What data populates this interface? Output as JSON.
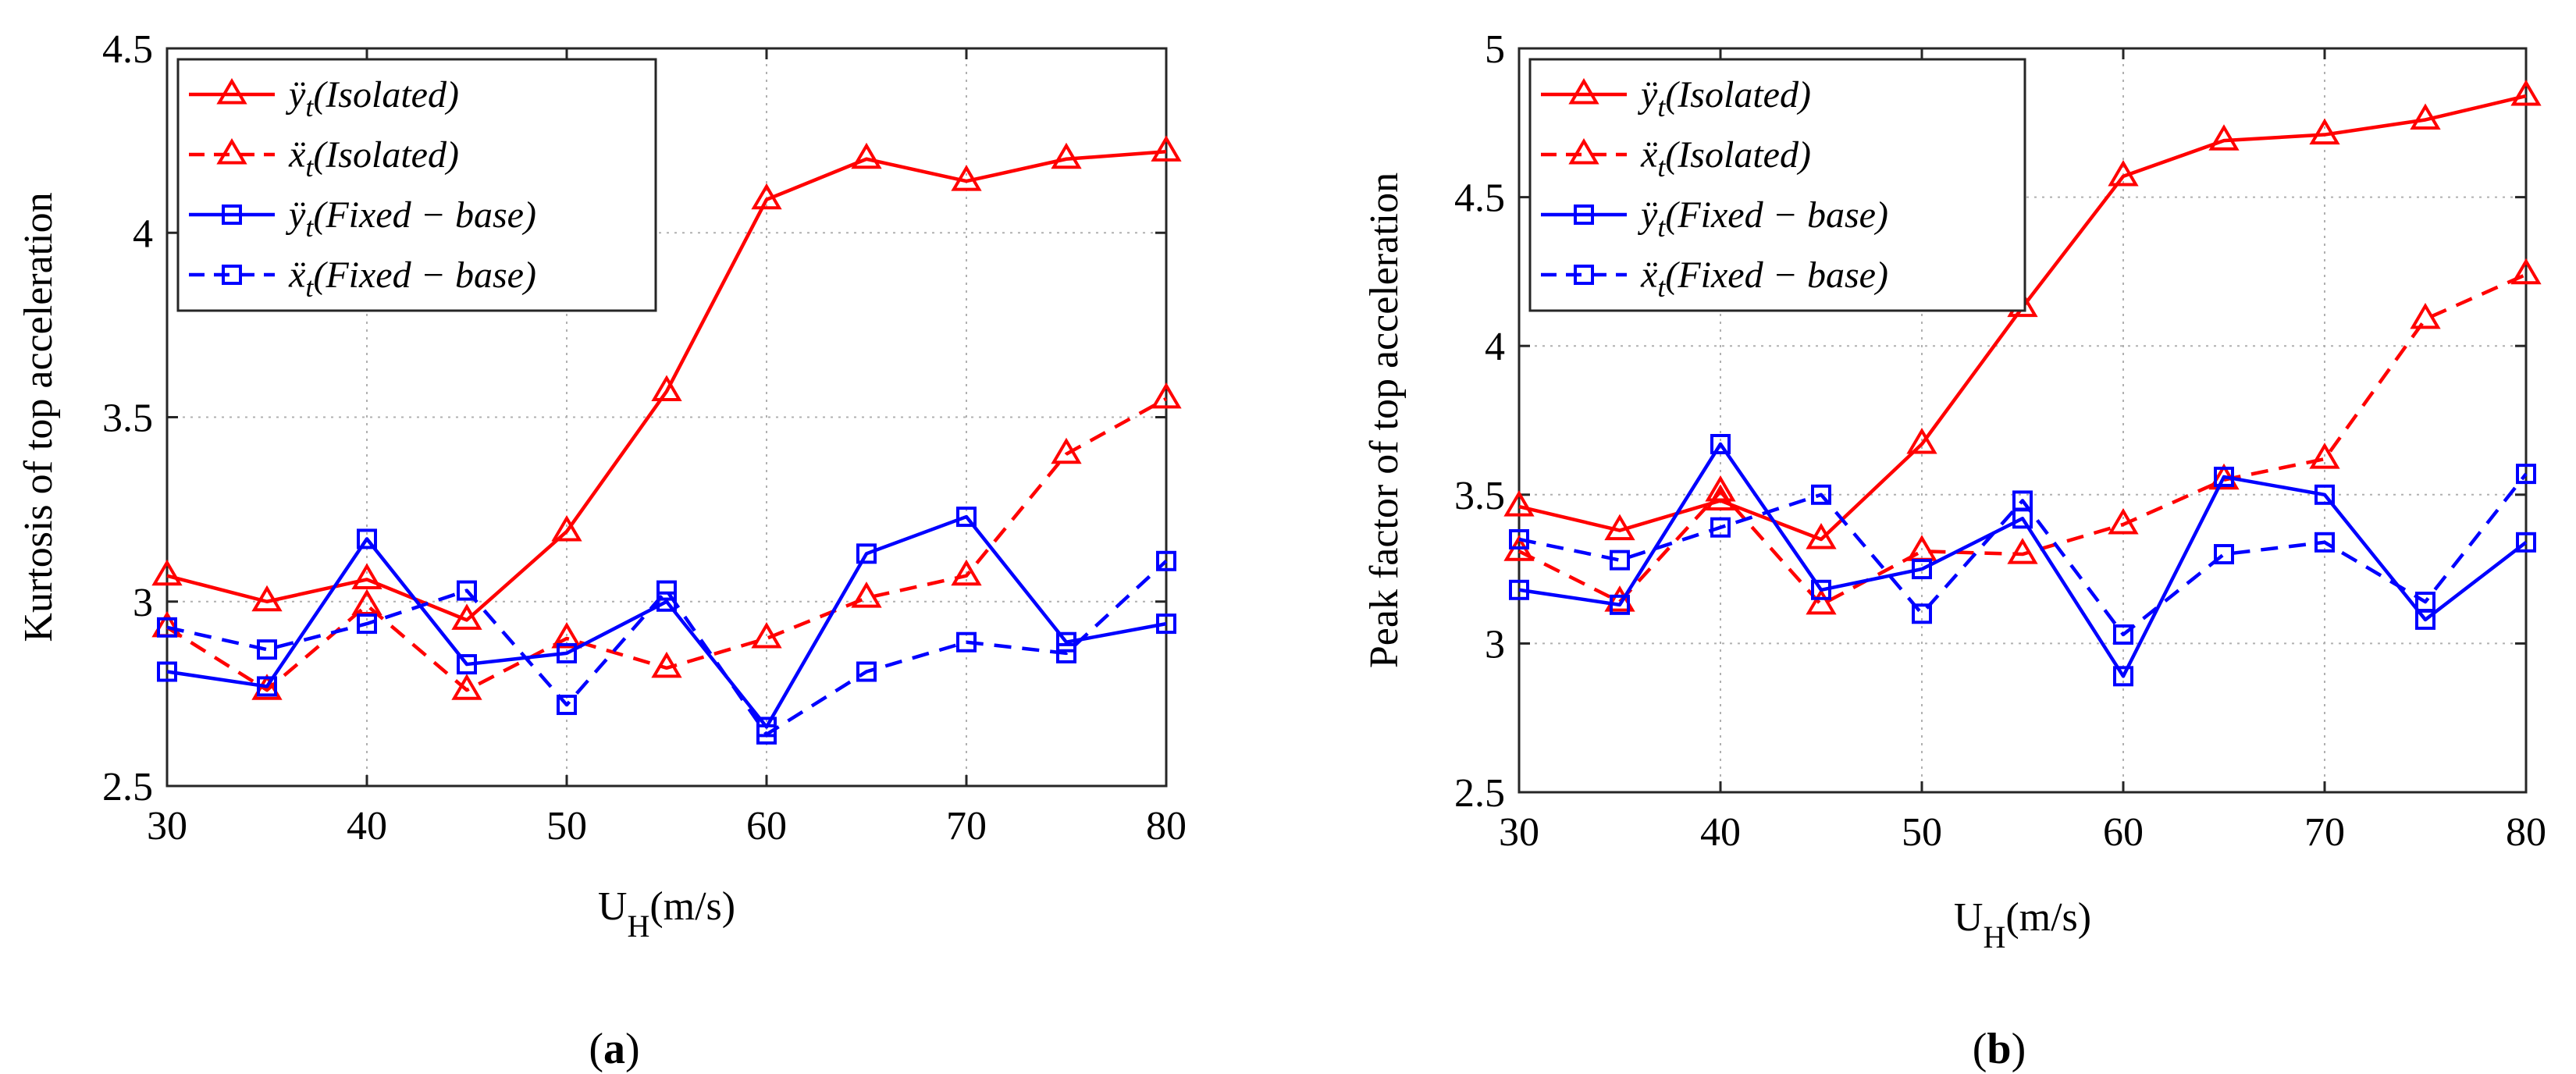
{
  "figure": {
    "captions": [
      {
        "open": "(",
        "letter": "a",
        "close": ")"
      },
      {
        "open": "(",
        "letter": "b",
        "close": ")"
      }
    ]
  },
  "colors": {
    "isolated": "#ff0000",
    "fixed": "#0000ff",
    "grid": "#b0b0b0",
    "axis": "#262626"
  },
  "chart_data": [
    {
      "type": "line",
      "id": "a",
      "xlabel": {
        "main": "U",
        "sub": "H",
        "rest": "(m/s)"
      },
      "ylabel": "Kurtosis of top acceleration",
      "x": [
        30,
        35,
        40,
        45,
        50,
        55,
        60,
        65,
        70,
        75,
        80
      ],
      "xlim": [
        30,
        80
      ],
      "ylim": [
        2.5,
        4.5
      ],
      "xticks": [
        30,
        40,
        50,
        60,
        70,
        80
      ],
      "yticks": [
        2.5,
        3,
        3.5,
        4,
        4.5
      ],
      "ytick_labels": [
        "2.5",
        "3",
        "3.5",
        "4",
        "4.5"
      ],
      "grid": true,
      "legend_position": "top-left",
      "series": [
        {
          "name": "ÿt(Isolated)",
          "base": "ÿ",
          "sub": "t",
          "paren": "(Isolated)",
          "color": "#ff0000",
          "dash": "solid",
          "marker": "triangle",
          "values": [
            3.07,
            3.0,
            3.06,
            2.95,
            3.19,
            3.57,
            4.09,
            4.2,
            4.14,
            4.2,
            4.22
          ]
        },
        {
          "name": "ẍt(Isolated)",
          "base": "ẍ",
          "sub": "t",
          "paren": "(Isolated)",
          "color": "#ff0000",
          "dash": "dashed",
          "marker": "triangle",
          "values": [
            2.93,
            2.76,
            2.99,
            2.76,
            2.9,
            2.82,
            2.9,
            3.01,
            3.07,
            3.4,
            3.55
          ]
        },
        {
          "name": "ÿt(Fixed − base)",
          "base": "ÿ",
          "sub": "t",
          "paren": "(Fixed − base)",
          "color": "#0000ff",
          "dash": "solid",
          "marker": "square",
          "values": [
            2.81,
            2.77,
            3.17,
            2.83,
            2.86,
            3.0,
            2.66,
            3.13,
            3.23,
            2.89,
            2.94
          ]
        },
        {
          "name": "ẍt(Fixed − base)",
          "base": "ẍ",
          "sub": "t",
          "paren": "(Fixed − base)",
          "color": "#0000ff",
          "dash": "dashed",
          "marker": "square",
          "values": [
            2.93,
            2.87,
            2.94,
            3.03,
            2.72,
            3.03,
            2.64,
            2.81,
            2.89,
            2.86,
            3.11
          ]
        }
      ]
    },
    {
      "type": "line",
      "id": "b",
      "xlabel": {
        "main": "U",
        "sub": "H",
        "rest": "(m/s)"
      },
      "ylabel": "Peak factor of top acceleration",
      "x": [
        30,
        35,
        40,
        45,
        50,
        55,
        60,
        65,
        70,
        75,
        80
      ],
      "xlim": [
        30,
        80
      ],
      "ylim": [
        2.5,
        5
      ],
      "xticks": [
        30,
        40,
        50,
        60,
        70,
        80
      ],
      "yticks": [
        2.5,
        3,
        3.5,
        4,
        4.5,
        5
      ],
      "ytick_labels": [
        "2.5",
        "3",
        "3.5",
        "4",
        "4.5",
        "5"
      ],
      "grid": true,
      "legend_position": "top-left",
      "series": [
        {
          "name": "ÿt(Isolated)",
          "base": "ÿ",
          "sub": "t",
          "paren": "(Isolated)",
          "color": "#ff0000",
          "dash": "solid",
          "marker": "triangle",
          "values": [
            3.46,
            3.38,
            3.48,
            3.35,
            3.67,
            4.13,
            4.57,
            4.69,
            4.71,
            4.76,
            4.84
          ]
        },
        {
          "name": "ẍt(Isolated)",
          "base": "ẍ",
          "sub": "t",
          "paren": "(Isolated)",
          "color": "#ff0000",
          "dash": "dashed",
          "marker": "triangle",
          "values": [
            3.31,
            3.14,
            3.51,
            3.13,
            3.31,
            3.3,
            3.4,
            3.55,
            3.62,
            4.09,
            4.24
          ]
        },
        {
          "name": "ÿt(Fixed − base)",
          "base": "ÿ",
          "sub": "t",
          "paren": "(Fixed − base)",
          "color": "#0000ff",
          "dash": "solid",
          "marker": "square",
          "values": [
            3.18,
            3.13,
            3.67,
            3.18,
            3.25,
            3.42,
            2.89,
            3.56,
            3.5,
            3.08,
            3.34
          ]
        },
        {
          "name": "ẍt(Fixed − base)",
          "base": "ẍ",
          "sub": "t",
          "paren": "(Fixed − base)",
          "color": "#0000ff",
          "dash": "dashed",
          "marker": "square",
          "values": [
            3.35,
            3.28,
            3.39,
            3.5,
            3.1,
            3.48,
            3.03,
            3.3,
            3.34,
            3.14,
            3.57
          ]
        }
      ]
    }
  ]
}
